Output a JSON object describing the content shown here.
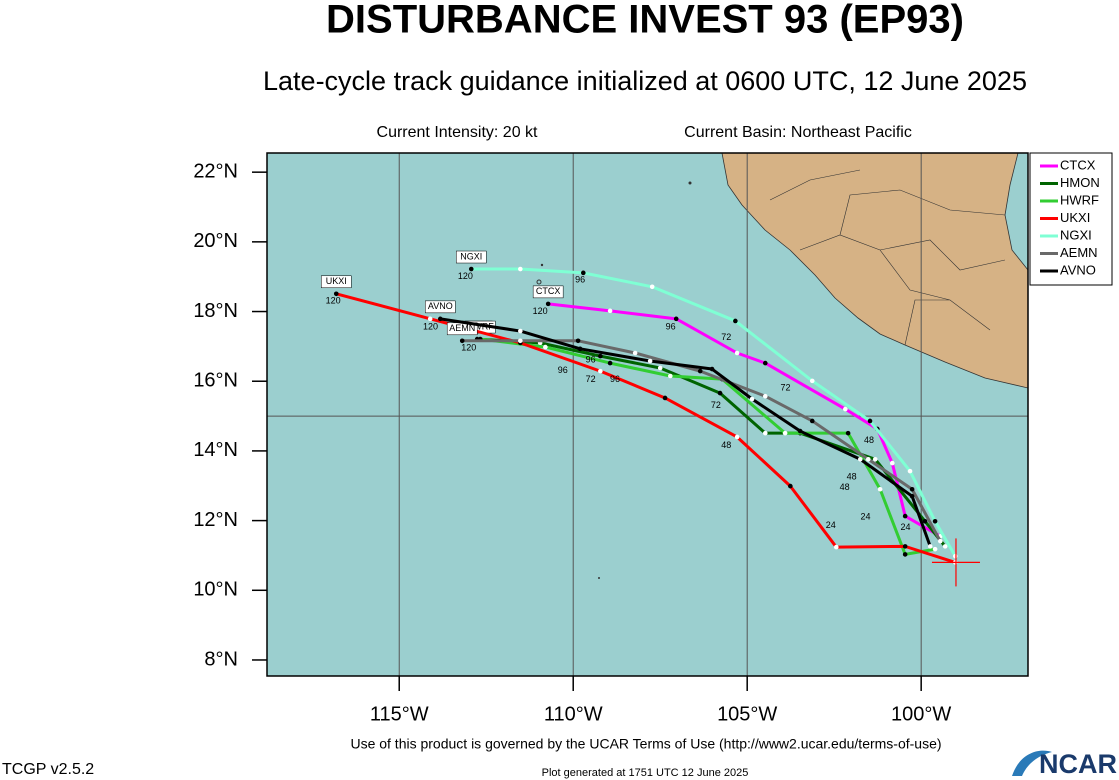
{
  "chart_data": {
    "type": "track-map",
    "title": "DISTURBANCE INVEST 93 (EP93)",
    "subtitle": "Late-cycle track guidance initialized at 0600 UTC, 12 June 2025",
    "info_left": "Current Intensity: 20 kt",
    "info_right": "Current Basin: Northeast Pacific",
    "xlim": [
      -118.8,
      -96.93
    ],
    "ylim": [
      7.54,
      22.55
    ],
    "xticks": [
      {
        "value": -115,
        "label": "115°W"
      },
      {
        "value": -110,
        "label": "110°W"
      },
      {
        "value": -105,
        "label": "105°W"
      },
      {
        "value": -100,
        "label": "100°W"
      }
    ],
    "yticks": [
      {
        "value": 8,
        "label": "8°N"
      },
      {
        "value": 10,
        "label": "10°N"
      },
      {
        "value": 12,
        "label": "12°N"
      },
      {
        "value": 14,
        "label": "14°N"
      },
      {
        "value": 16,
        "label": "16°N"
      },
      {
        "value": 18,
        "label": "18°N"
      },
      {
        "value": 20,
        "label": "20°N"
      },
      {
        "value": 22,
        "label": "22°N"
      }
    ],
    "grid_lon": [
      -115,
      -110,
      -105,
      -100
    ],
    "grid_lat": [
      15
    ],
    "legend": "outside-top-right",
    "current_position": {
      "x": -99.0,
      "y": 10.8,
      "color": "#ff0000"
    },
    "series": [
      {
        "name": "CTCX",
        "color": "#ff00ff",
        "x": [
          -99.45,
          -100.46,
          -100.83,
          -101.26,
          -102.18,
          -104.48,
          -105.29,
          -107.04,
          -108.94,
          -110.72
        ],
        "y": [
          11.55,
          12.13,
          13.65,
          14.63,
          15.2,
          16.52,
          16.81,
          17.79,
          18.02,
          18.22
        ]
      },
      {
        "name": "HMON",
        "color": "#006400",
        "x": [
          -99.31,
          -99.89,
          -101.32,
          -103.48,
          -104.48,
          -105.78,
          -107.5,
          -109.22,
          -110.95,
          -112.76
        ],
        "y": [
          11.26,
          11.98,
          13.76,
          14.51,
          14.51,
          15.66,
          16.38,
          16.72,
          17.1,
          17.21
        ]
      },
      {
        "name": "HWRF",
        "color": "#32cd32",
        "x": [
          -99.6,
          -100.46,
          -101.18,
          -102.1,
          -103.91,
          -105.72,
          -107.21,
          -108.94,
          -110.8,
          -112.67
        ],
        "y": [
          11.18,
          11.03,
          12.9,
          14.51,
          14.51,
          16.06,
          16.15,
          16.52,
          16.98,
          17.21
        ]
      },
      {
        "name": "UKXI",
        "color": "#ff0000",
        "x": [
          -99.02,
          -100.46,
          -102.44,
          -103.76,
          -105.29,
          -107.36,
          -109.22,
          -111.52,
          -114.11,
          -116.81
        ],
        "y": [
          10.8,
          11.26,
          11.24,
          12.99,
          14.4,
          15.52,
          16.29,
          17.1,
          17.79,
          18.51
        ]
      },
      {
        "name": "NGXI",
        "color": "#7fffd4",
        "x": [
          -99.02,
          -99.6,
          -100.32,
          -101.47,
          -103.13,
          -105.34,
          -107.73,
          -109.71,
          -111.52,
          -112.93
        ],
        "y": [
          10.98,
          11.98,
          13.42,
          14.86,
          16.01,
          17.73,
          18.71,
          19.11,
          19.22,
          19.22
        ]
      },
      {
        "name": "AEMN",
        "color": "#696969",
        "x": [
          -99.45,
          -100.26,
          -101.52,
          -103.13,
          -104.48,
          -106.35,
          -108.22,
          -109.86,
          -111.52,
          -113.19
        ],
        "y": [
          11.41,
          12.9,
          13.76,
          14.86,
          15.57,
          16.29,
          16.81,
          17.16,
          17.16,
          17.16
        ]
      },
      {
        "name": "AVNO",
        "color": "#000000",
        "x": [
          -99.74,
          -100.26,
          -101.75,
          -103.48,
          -104.86,
          -106.01,
          -107.79,
          -109.8,
          -111.52,
          -113.82
        ],
        "y": [
          11.26,
          12.7,
          13.76,
          14.57,
          15.49,
          16.35,
          16.58,
          16.93,
          17.44,
          17.79
        ]
      }
    ],
    "hour_labels": [
      {
        "label": "120",
        "x": -116.9,
        "y": 18.3
      },
      {
        "label": "120",
        "x": -113.1,
        "y": 19.0
      },
      {
        "label": "120",
        "x": -110.95,
        "y": 18.0
      },
      {
        "label": "120",
        "x": -114.1,
        "y": 17.55
      },
      {
        "label": "120",
        "x": -113.0,
        "y": 16.95
      },
      {
        "label": "96",
        "x": -109.8,
        "y": 18.9
      },
      {
        "label": "96",
        "x": -107.2,
        "y": 17.55
      },
      {
        "label": "96",
        "x": -110.3,
        "y": 16.3
      },
      {
        "label": "96",
        "x": -108.8,
        "y": 16.05
      },
      {
        "label": "96",
        "x": -109.5,
        "y": 16.6
      },
      {
        "label": "72",
        "x": -105.6,
        "y": 17.25
      },
      {
        "label": "72",
        "x": -103.9,
        "y": 15.8
      },
      {
        "label": "72",
        "x": -109.5,
        "y": 16.05
      },
      {
        "label": "72",
        "x": -105.9,
        "y": 15.3
      },
      {
        "label": "48",
        "x": -105.6,
        "y": 14.15
      },
      {
        "label": "48",
        "x": -101.5,
        "y": 14.3
      },
      {
        "label": "48",
        "x": -102.0,
        "y": 13.25
      },
      {
        "label": "48",
        "x": -102.2,
        "y": 12.95
      },
      {
        "label": "24",
        "x": -102.6,
        "y": 11.85
      },
      {
        "label": "24",
        "x": -101.6,
        "y": 12.1
      },
      {
        "label": "24",
        "x": -100.45,
        "y": 11.8
      }
    ],
    "footer": "Use of this product is governed by the UCAR Terms of Use (http://www2.ucar.edu/terms-of-use)",
    "version": "TCGP v2.5.2",
    "generated": "Plot generated at 1751 UTC   12 June 2025",
    "logo": "NCAR"
  }
}
